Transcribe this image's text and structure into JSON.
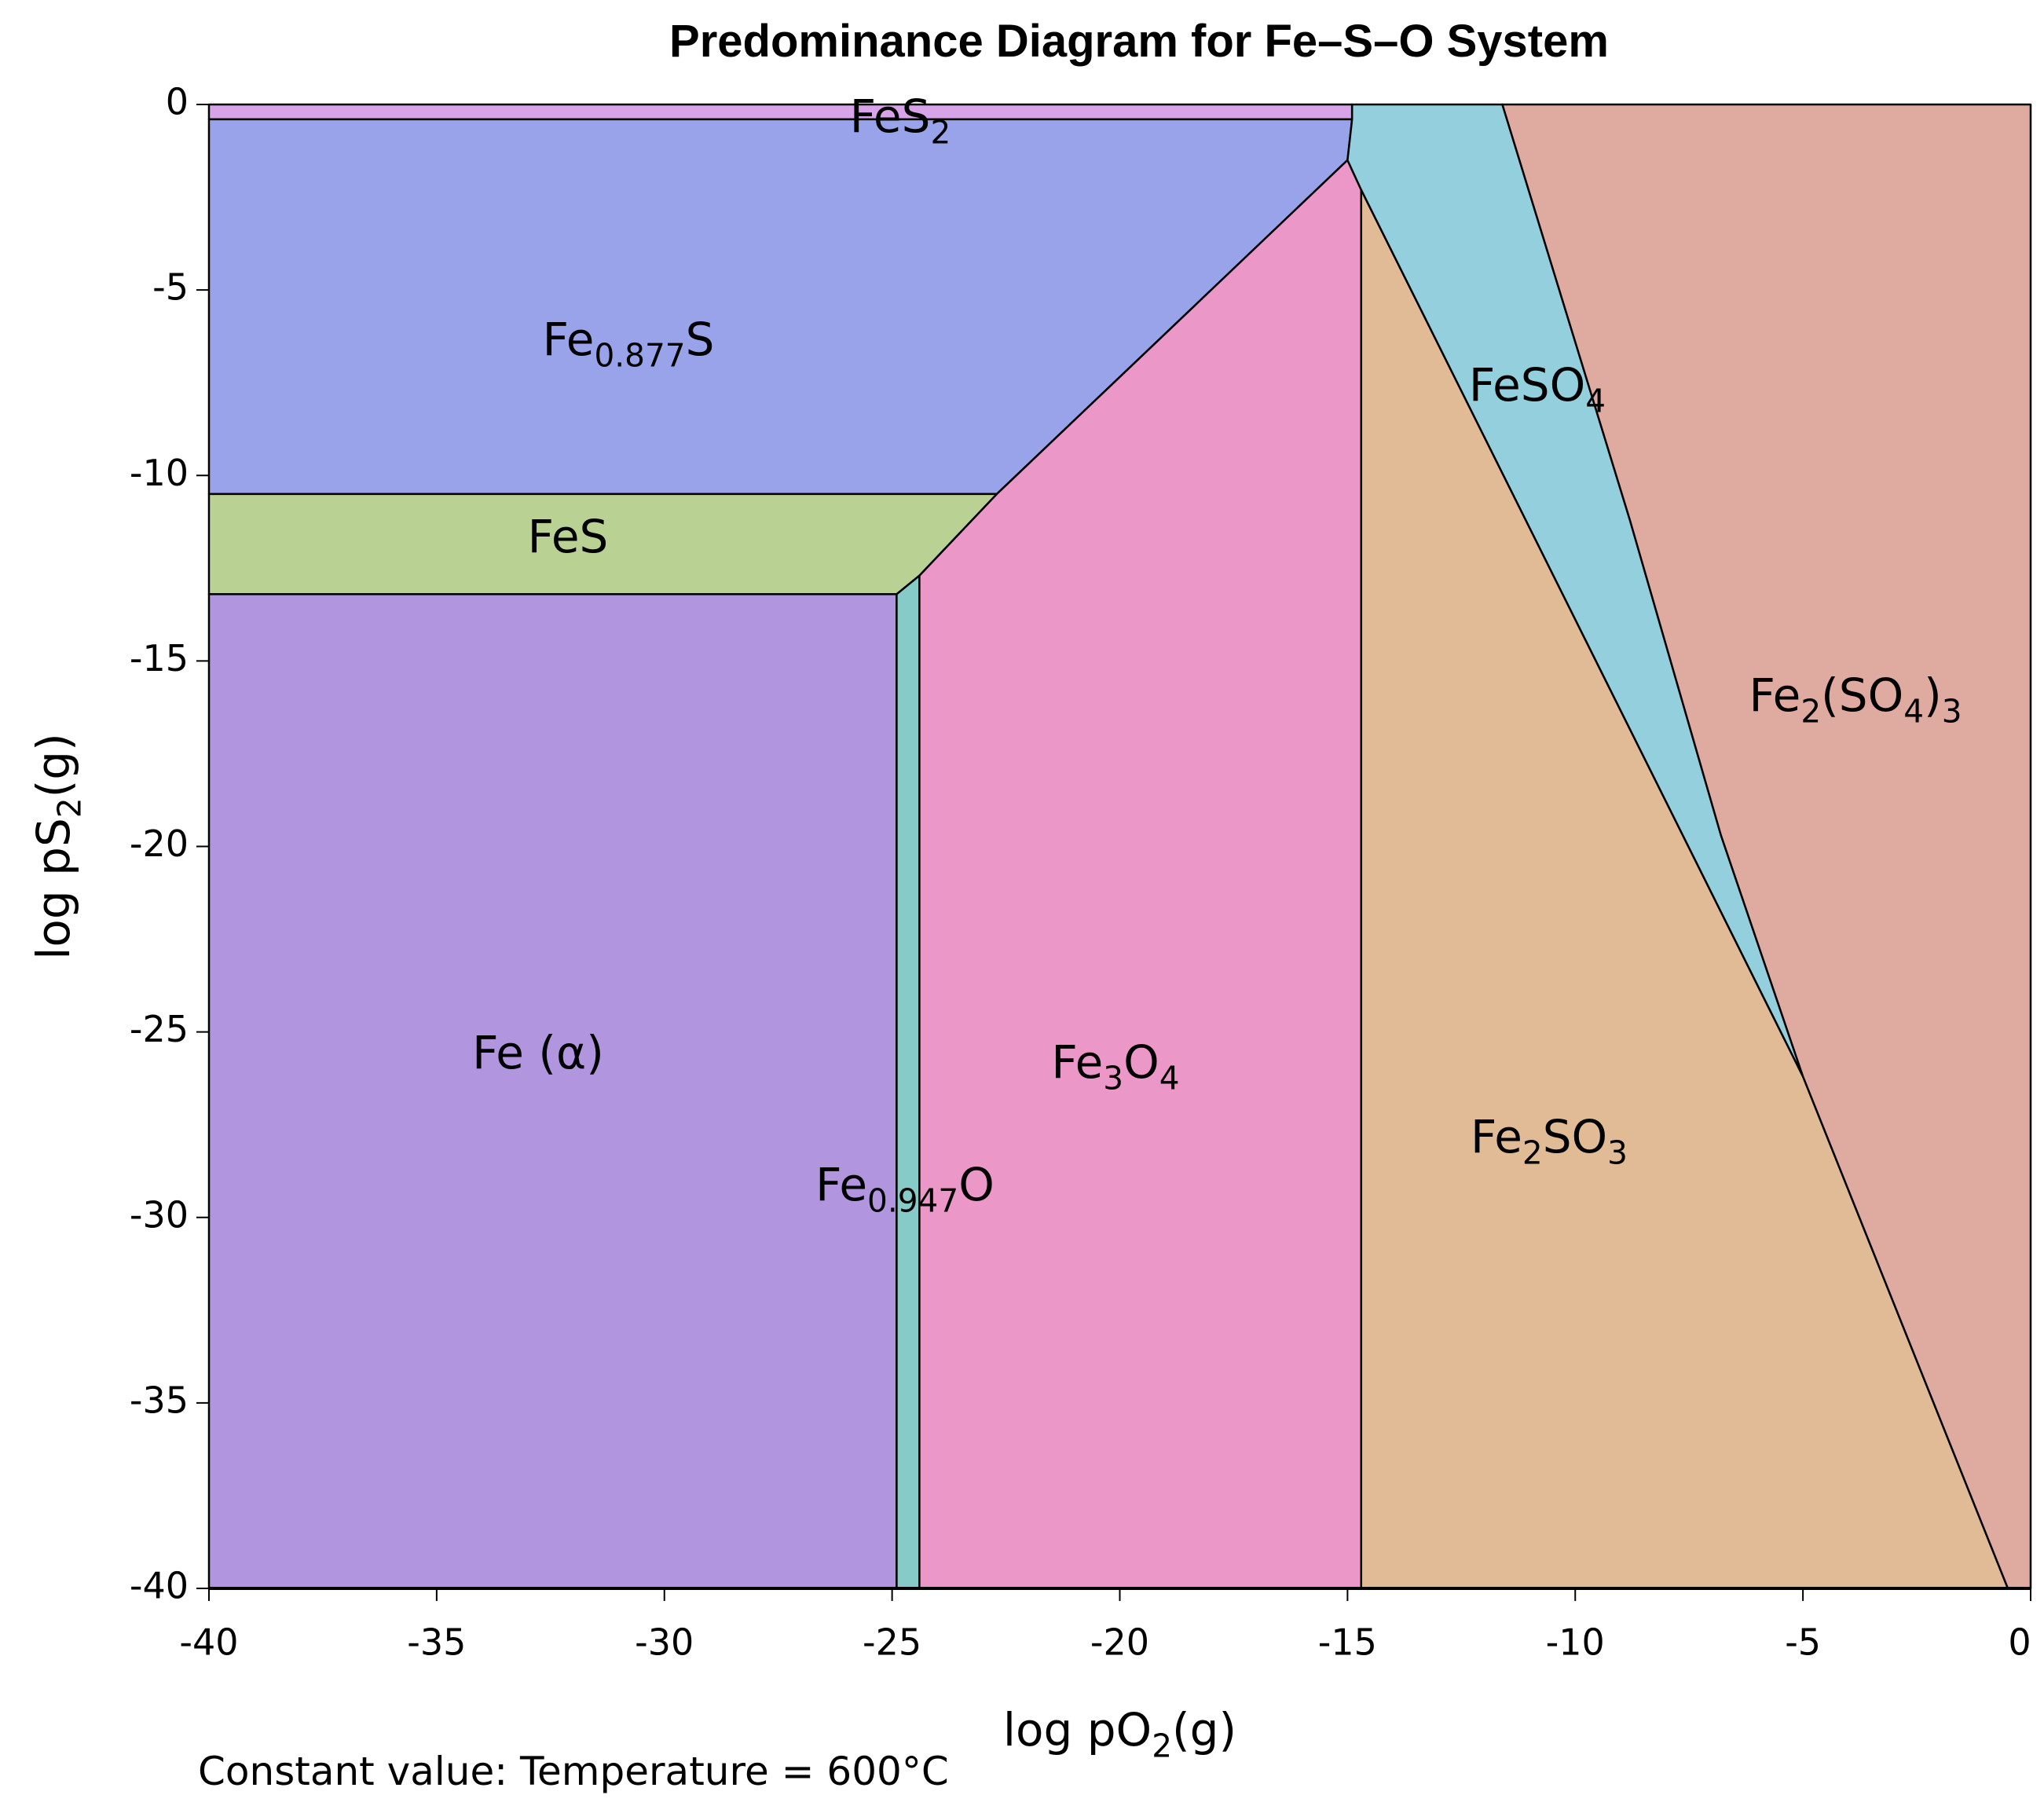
{
  "chart_data": {
    "type": "predominance",
    "title": "Predominance Diagram for Fe–S–O System",
    "x_label": [
      "log pO",
      "2",
      "(g)"
    ],
    "y_label": [
      "log pS",
      "2",
      "(g)"
    ],
    "annotation": "Constant value: Temperature = 600°C",
    "xlim": [
      -40,
      0
    ],
    "ylim": [
      -40,
      0
    ],
    "xticks": [
      -40,
      -35,
      -30,
      -25,
      -20,
      -15,
      -10,
      -5,
      0
    ],
    "yticks": [
      0,
      -5,
      -10,
      -15,
      -20,
      -25,
      -30,
      -35,
      -40
    ],
    "regions": [
      {
        "label": [
          "FeS",
          "2"
        ],
        "color": "#d9a3e9",
        "x": [
          -40,
          -14.9,
          -14.9,
          -40
        ],
        "y": [
          0,
          0,
          -0.4,
          -0.4
        ]
      },
      {
        "label": [
          "Fe",
          "0.877",
          "S"
        ],
        "color": "#99a3ea",
        "x": [
          -40,
          -14.9,
          -15.0,
          -22.7,
          -40
        ],
        "y": [
          -0.4,
          -0.4,
          -1.5,
          -10.5,
          -10.5
        ]
      },
      {
        "label": [
          "FeS"
        ],
        "color": "#b9d192",
        "x": [
          -40,
          -22.7,
          -24.4,
          -24.9,
          -40
        ],
        "y": [
          -10.5,
          -10.5,
          -12.7,
          -13.2,
          -13.2
        ]
      },
      {
        "label": [
          "Fe (α)"
        ],
        "color": "#b196df",
        "x": [
          -40,
          -24.9,
          -24.9,
          -40
        ],
        "y": [
          -13.2,
          -13.2,
          -40,
          -40
        ]
      },
      {
        "label": [
          "Fe",
          "0.947",
          "O"
        ],
        "color": "#86cbc7",
        "x": [
          -24.9,
          -24.4,
          -24.4,
          -24.9
        ],
        "y": [
          -13.2,
          -12.7,
          -40,
          -40
        ]
      },
      {
        "label": [
          "Fe",
          "3",
          "O",
          "4"
        ],
        "color": "#eb97c7",
        "x": [
          -24.4,
          -22.7,
          -15.0,
          -14.7,
          -14.7,
          -24.4
        ],
        "y": [
          -12.7,
          -10.5,
          -1.5,
          -2.3,
          -40,
          -40
        ]
      },
      {
        "label": [
          "Fe",
          "2",
          "SO",
          "3"
        ],
        "color": "#e0bb96",
        "x": [
          -14.7,
          -5.0,
          -0.5,
          -14.7
        ],
        "y": [
          -2.3,
          -26.2,
          -40,
          -40
        ]
      },
      {
        "label": [
          "FeSO",
          "4"
        ],
        "color": "#93cfdc",
        "x": [
          -14.9,
          -11.6,
          -8.8,
          -6.8,
          -5.0,
          -14.7,
          -15.0,
          -14.9
        ],
        "y": [
          0,
          0,
          -11.2,
          -19.7,
          -26.2,
          -2.3,
          -1.5,
          -0.4
        ]
      },
      {
        "label": [
          "Fe",
          "2",
          "(SO",
          "4",
          ")",
          "3"
        ],
        "color": "#dfaa9f",
        "x": [
          -11.6,
          0,
          0,
          -0.5,
          -5.0,
          -6.8,
          -8.8
        ],
        "y": [
          0,
          0,
          -40,
          -40,
          -26.2,
          -19.7,
          -11.2
        ]
      }
    ]
  }
}
